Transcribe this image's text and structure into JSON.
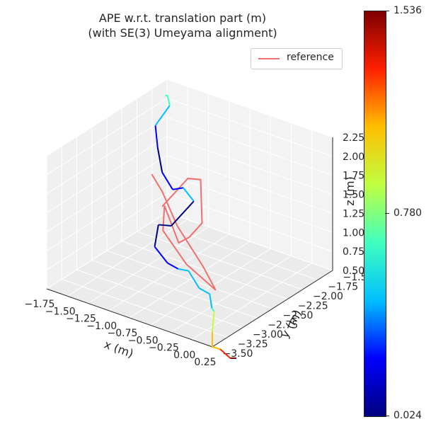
{
  "title_line1": "APE w.r.t. translation part (m)",
  "title_line2": "(with SE(3) Umeyama alignment)",
  "legend": {
    "label": "reference",
    "color": "#f07070"
  },
  "colorbar": {
    "min_label": "0.024",
    "mid_label": "0.780",
    "max_label": "1.536",
    "colormap": [
      "#00007f",
      "#0000ff",
      "#00bfff",
      "#40ffbf",
      "#bfff40",
      "#ffbf00",
      "#ff2000",
      "#7f0000"
    ]
  },
  "chart_data": {
    "type": "line",
    "projection": "3d",
    "title": "APE w.r.t. translation part (m)\n(with SE(3) Umeyama alignment)",
    "xlabel": "x (m)",
    "ylabel": "y (m)",
    "zlabel": "z (m)",
    "xlim": [
      -1.75,
      0.25
    ],
    "ylim": [
      -3.5,
      -1.5
    ],
    "zlim": [
      0.5,
      2.25
    ],
    "xticks": [
      "−1.75",
      "−1.50",
      "−1.25",
      "−1.00",
      "−0.75",
      "−0.50",
      "−0.25",
      "0.00",
      "0.25"
    ],
    "yticks": [
      "−3.50",
      "−3.25",
      "−3.00",
      "−2.75",
      "−2.50",
      "−2.25",
      "−2.00",
      "−1.75",
      "−1.50"
    ],
    "zticks": [
      "0.50",
      "0.75",
      "1.00",
      "1.25",
      "1.50",
      "1.75",
      "2.00",
      "2.25"
    ],
    "grid": true,
    "legend_position": "top-right",
    "series": [
      {
        "name": "reference",
        "color": "#f07070",
        "points": [
          [
            -1.3,
            -2.2,
            1.1
          ],
          [
            -1.0,
            -2.4,
            1.5
          ],
          [
            -0.7,
            -2.6,
            1.9
          ],
          [
            -0.4,
            -2.8,
            2.1
          ],
          [
            -0.6,
            -2.5,
            1.3
          ],
          [
            -0.9,
            -2.3,
            0.9
          ],
          [
            -1.1,
            -2.2,
            0.7
          ],
          [
            -1.2,
            -2.3,
            1.2
          ],
          [
            -1.0,
            -2.6,
            1.1
          ],
          [
            -0.5,
            -2.9,
            1.0
          ],
          [
            0.0,
            -3.1,
            0.95
          ],
          [
            -0.3,
            -2.9,
            1.05
          ],
          [
            -0.9,
            -2.5,
            1.15
          ],
          [
            -1.3,
            -2.2,
            1.3
          ],
          [
            -1.5,
            -2.1,
            1.4
          ]
        ]
      }
    ],
    "colormapped_series": {
      "colorbar_range": [
        0.024,
        1.536
      ],
      "points": [
        [
          -1.7,
          -1.6,
          2.1,
          0.55
        ],
        [
          -1.6,
          -1.7,
          2.2,
          0.6
        ],
        [
          -1.5,
          -1.8,
          2.15,
          0.62
        ],
        [
          -1.6,
          -1.9,
          1.9,
          0.5
        ],
        [
          -1.5,
          -2.0,
          1.7,
          0.15
        ],
        [
          -1.3,
          -2.2,
          1.55,
          0.12
        ],
        [
          -1.1,
          -2.3,
          1.45,
          0.2
        ],
        [
          -0.9,
          -2.4,
          1.6,
          0.3
        ],
        [
          -0.7,
          -2.5,
          1.55,
          0.35
        ],
        [
          -0.9,
          -2.6,
          1.2,
          0.1
        ],
        [
          -1.2,
          -2.4,
          1.0,
          0.05
        ],
        [
          -1.1,
          -2.6,
          0.85,
          0.08
        ],
        [
          -0.8,
          -2.8,
          0.85,
          0.2
        ],
        [
          -0.6,
          -2.9,
          0.9,
          0.3
        ],
        [
          -0.4,
          -3.0,
          1.0,
          0.4
        ],
        [
          -0.2,
          -3.1,
          0.9,
          0.45
        ],
        [
          0.0,
          -3.2,
          0.95,
          0.5
        ],
        [
          0.1,
          -3.3,
          0.85,
          0.55
        ],
        [
          0.2,
          -3.4,
          0.9,
          0.65
        ],
        [
          0.25,
          -3.5,
          0.7,
          0.85
        ],
        [
          0.25,
          -3.5,
          0.5,
          1.0
        ],
        [
          0.2,
          -3.3,
          0.35,
          1.2
        ],
        [
          0.25,
          -3.2,
          0.2,
          1.4
        ],
        [
          0.25,
          -3.1,
          0.15,
          1.5
        ]
      ]
    }
  }
}
